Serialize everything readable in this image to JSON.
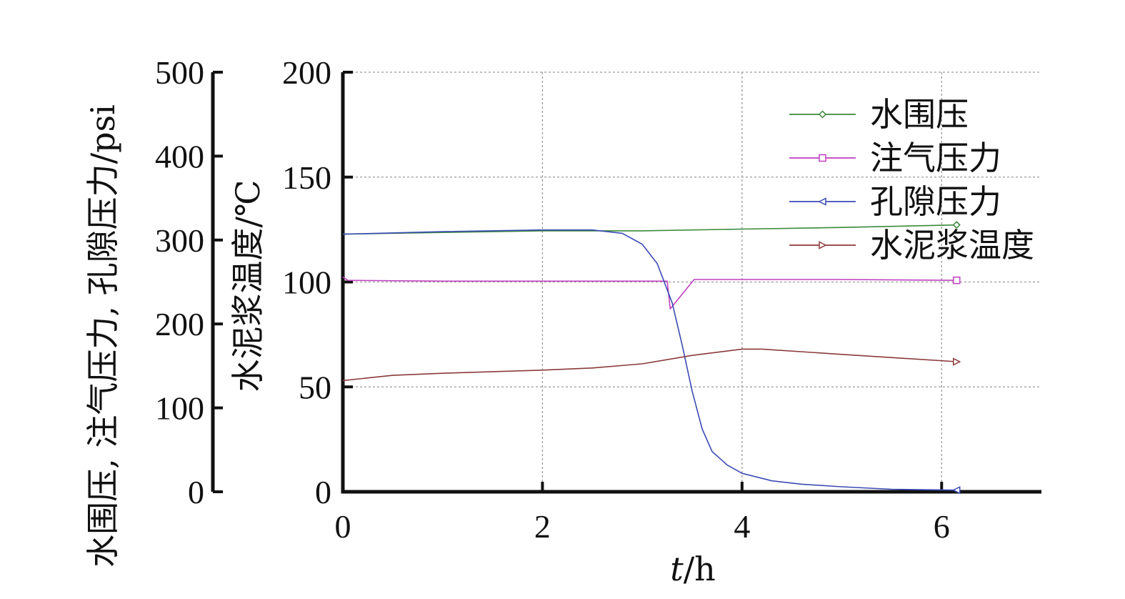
{
  "chart_data": {
    "type": "line",
    "title": "",
    "xlabel_italic": "t",
    "xlabel_rest": "/h",
    "ylabel_left": "水围压, 注气压力, 孔隙压力/psi",
    "ylabel_right": "水泥浆温度/℃",
    "xlim": [
      0,
      7
    ],
    "ylim_pressure": [
      0,
      500
    ],
    "ylim_temperature": [
      0,
      200
    ],
    "x_ticks": [
      "0",
      "2",
      "4",
      "6"
    ],
    "y_ticks_pressure": [
      "0",
      "100",
      "200",
      "300",
      "400",
      "500"
    ],
    "y_ticks_temperature": [
      "0",
      "50",
      "100",
      "150",
      "200"
    ],
    "grid": true,
    "legend_position": "top-right",
    "series": [
      {
        "name": "水围压",
        "axis": "pressure",
        "color": "#3a8a3a",
        "marker": "diamond",
        "x": [
          0,
          1,
          2,
          3,
          4,
          5,
          6.15
        ],
        "y": [
          307,
          309,
          311,
          311,
          313,
          315,
          318
        ]
      },
      {
        "name": "注气压力",
        "axis": "pressure",
        "color": "#c040c0",
        "marker": "square",
        "x": [
          0,
          0.05,
          1,
          2,
          3,
          3.25,
          3.28,
          3.52,
          4,
          5,
          6.15
        ],
        "y": [
          256,
          252,
          251,
          251,
          251,
          251,
          218,
          253,
          253,
          253,
          252
        ]
      },
      {
        "name": "孔隙压力",
        "axis": "pressure",
        "color": "#3c4bb4",
        "marker": "triangle-left",
        "x": [
          0,
          1,
          2,
          2.5,
          2.8,
          3.0,
          3.15,
          3.3,
          3.4,
          3.5,
          3.6,
          3.7,
          3.85,
          4.0,
          4.3,
          4.6,
          5.0,
          5.5,
          6.15
        ],
        "y": [
          307,
          310,
          312,
          312,
          308,
          295,
          272,
          225,
          175,
          120,
          75,
          48,
          32,
          22,
          13,
          9,
          6,
          3,
          2
        ]
      },
      {
        "name": "水泥浆温度",
        "axis": "temperature",
        "color": "#8b3a3a",
        "marker": "triangle-right",
        "x": [
          0,
          0.5,
          1,
          2,
          2.5,
          3.0,
          3.5,
          4.0,
          4.2,
          5.0,
          6.15
        ],
        "y": [
          53,
          55.5,
          56.5,
          58,
          59,
          61,
          65,
          68,
          68,
          65.5,
          62
        ]
      }
    ]
  }
}
